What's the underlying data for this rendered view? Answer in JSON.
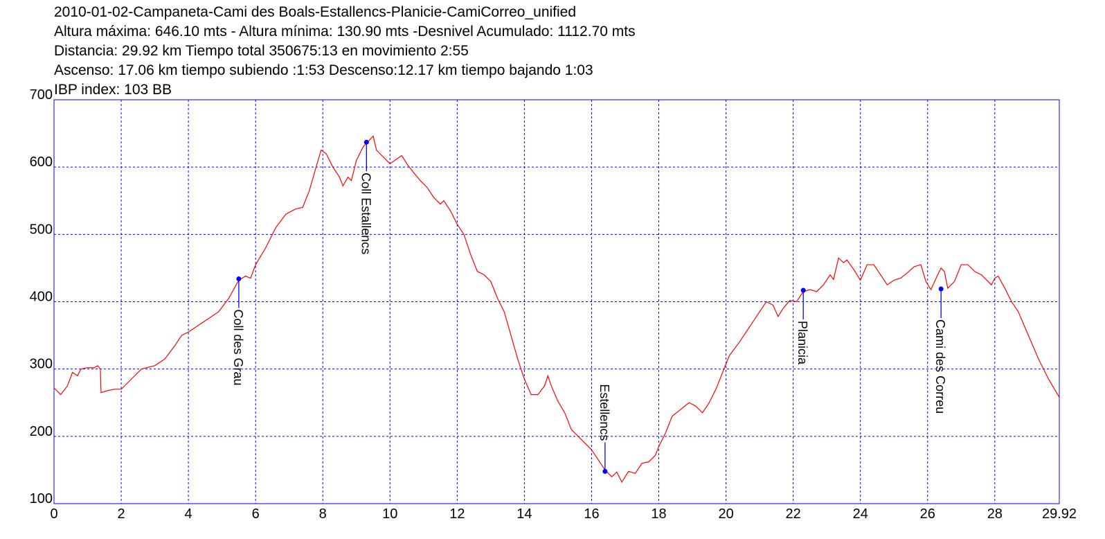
{
  "chart_data": {
    "type": "line",
    "title": "2010-01-02-Campaneta-Cami des Boals-Estallencs-Planicie-CamiCorreo_unified",
    "subtitle": [
      "Altura máxima: 646.10 mts - Altura mínima: 130.90 mts -Desnivel Acumulado: 1112.70 mts",
      "Distancia: 29.92 km  Tiempo total 350675:13  en movimiento 2:55",
      "Ascenso: 17.06 km  tiempo subiendo :1:53  Descenso:12.17 km tiempo bajando 1:03",
      "IBP index: 103 BB"
    ],
    "color": "#ff0000",
    "grid": true,
    "grid_color": "#0000ff",
    "x": [
      0,
      0.2,
      0.4,
      0.55,
      0.7,
      0.8,
      1.0,
      1.2,
      1.3,
      1.38,
      1.4,
      1.6,
      1.8,
      2.0,
      2.3,
      2.6,
      3.0,
      3.3,
      3.6,
      3.8,
      4.0,
      4.3,
      4.6,
      4.9,
      5.2,
      5.5,
      5.7,
      5.85,
      6.0,
      6.3,
      6.6,
      6.9,
      7.2,
      7.4,
      7.6,
      7.8,
      7.95,
      8.1,
      8.3,
      8.5,
      8.6,
      8.75,
      8.85,
      9.0,
      9.2,
      9.35,
      9.5,
      9.6,
      9.8,
      10.0,
      10.2,
      10.35,
      10.5,
      10.7,
      10.9,
      11.1,
      11.3,
      11.5,
      11.6,
      11.8,
      12.0,
      12.2,
      12.4,
      12.6,
      12.8,
      13.0,
      13.2,
      13.4,
      13.6,
      13.8,
      14.0,
      14.2,
      14.4,
      14.6,
      14.7,
      14.8,
      15.0,
      15.2,
      15.4,
      15.6,
      15.8,
      16.0,
      16.2,
      16.4,
      16.6,
      16.75,
      16.9,
      17.1,
      17.3,
      17.5,
      17.7,
      17.9,
      18.0,
      18.2,
      18.4,
      18.6,
      18.9,
      19.1,
      19.3,
      19.5,
      19.7,
      19.9,
      20.1,
      20.4,
      20.6,
      20.8,
      21.0,
      21.2,
      21.4,
      21.55,
      21.7,
      21.9,
      22.1,
      22.3,
      22.5,
      22.7,
      22.9,
      23.1,
      23.2,
      23.35,
      23.5,
      23.6,
      23.8,
      24.0,
      24.2,
      24.4,
      24.6,
      24.8,
      25.0,
      25.2,
      25.4,
      25.6,
      25.8,
      25.95,
      26.1,
      26.3,
      26.4,
      26.5,
      26.6,
      26.8,
      27.0,
      27.2,
      27.4,
      27.6,
      27.8,
      27.9,
      28.0,
      28.1,
      28.3,
      28.5,
      28.7,
      29.0,
      29.3,
      29.6,
      29.92
    ],
    "values": [
      272,
      262,
      275,
      295,
      290,
      300,
      302,
      302,
      305,
      300,
      265,
      268,
      270,
      270,
      285,
      300,
      305,
      315,
      335,
      350,
      355,
      365,
      375,
      385,
      405,
      432,
      438,
      435,
      455,
      480,
      510,
      530,
      538,
      540,
      565,
      600,
      625,
      620,
      600,
      585,
      572,
      585,
      580,
      610,
      630,
      638,
      646,
      625,
      615,
      605,
      612,
      617,
      605,
      592,
      580,
      570,
      555,
      545,
      550,
      535,
      515,
      500,
      470,
      445,
      440,
      430,
      405,
      385,
      350,
      315,
      285,
      262,
      262,
      275,
      290,
      275,
      252,
      235,
      210,
      200,
      190,
      180,
      165,
      150,
      140,
      147,
      132,
      148,
      145,
      160,
      162,
      172,
      185,
      205,
      230,
      238,
      250,
      245,
      235,
      250,
      270,
      295,
      320,
      340,
      355,
      370,
      385,
      400,
      395,
      378,
      390,
      402,
      400,
      415,
      418,
      415,
      425,
      440,
      433,
      465,
      458,
      462,
      448,
      432,
      455,
      455,
      440,
      425,
      432,
      435,
      443,
      452,
      455,
      430,
      418,
      440,
      450,
      445,
      420,
      430,
      455,
      455,
      445,
      440,
      430,
      425,
      435,
      438,
      420,
      400,
      385,
      350,
      315,
      285,
      258
    ],
    "xlim": [
      0,
      29.92
    ],
    "ylim": [
      100,
      700
    ],
    "xticks": [
      0,
      2,
      4,
      6,
      8,
      10,
      12,
      14,
      16,
      18,
      20,
      22,
      24,
      26,
      28,
      29.92
    ],
    "yticks": [
      100,
      200,
      300,
      400,
      500,
      600,
      700
    ],
    "annotation_color": "#0000ff",
    "annotations": [
      {
        "label": "Coll des Grau",
        "x": 5.5,
        "y": 434
      },
      {
        "label": "Coll Estallencs",
        "x": 9.3,
        "y": 637
      },
      {
        "label": "Estellencs",
        "x": 16.4,
        "y": 148
      },
      {
        "label": "Planicia",
        "x": 22.3,
        "y": 417
      },
      {
        "label": "Cami des Correu",
        "x": 26.4,
        "y": 419
      }
    ]
  }
}
